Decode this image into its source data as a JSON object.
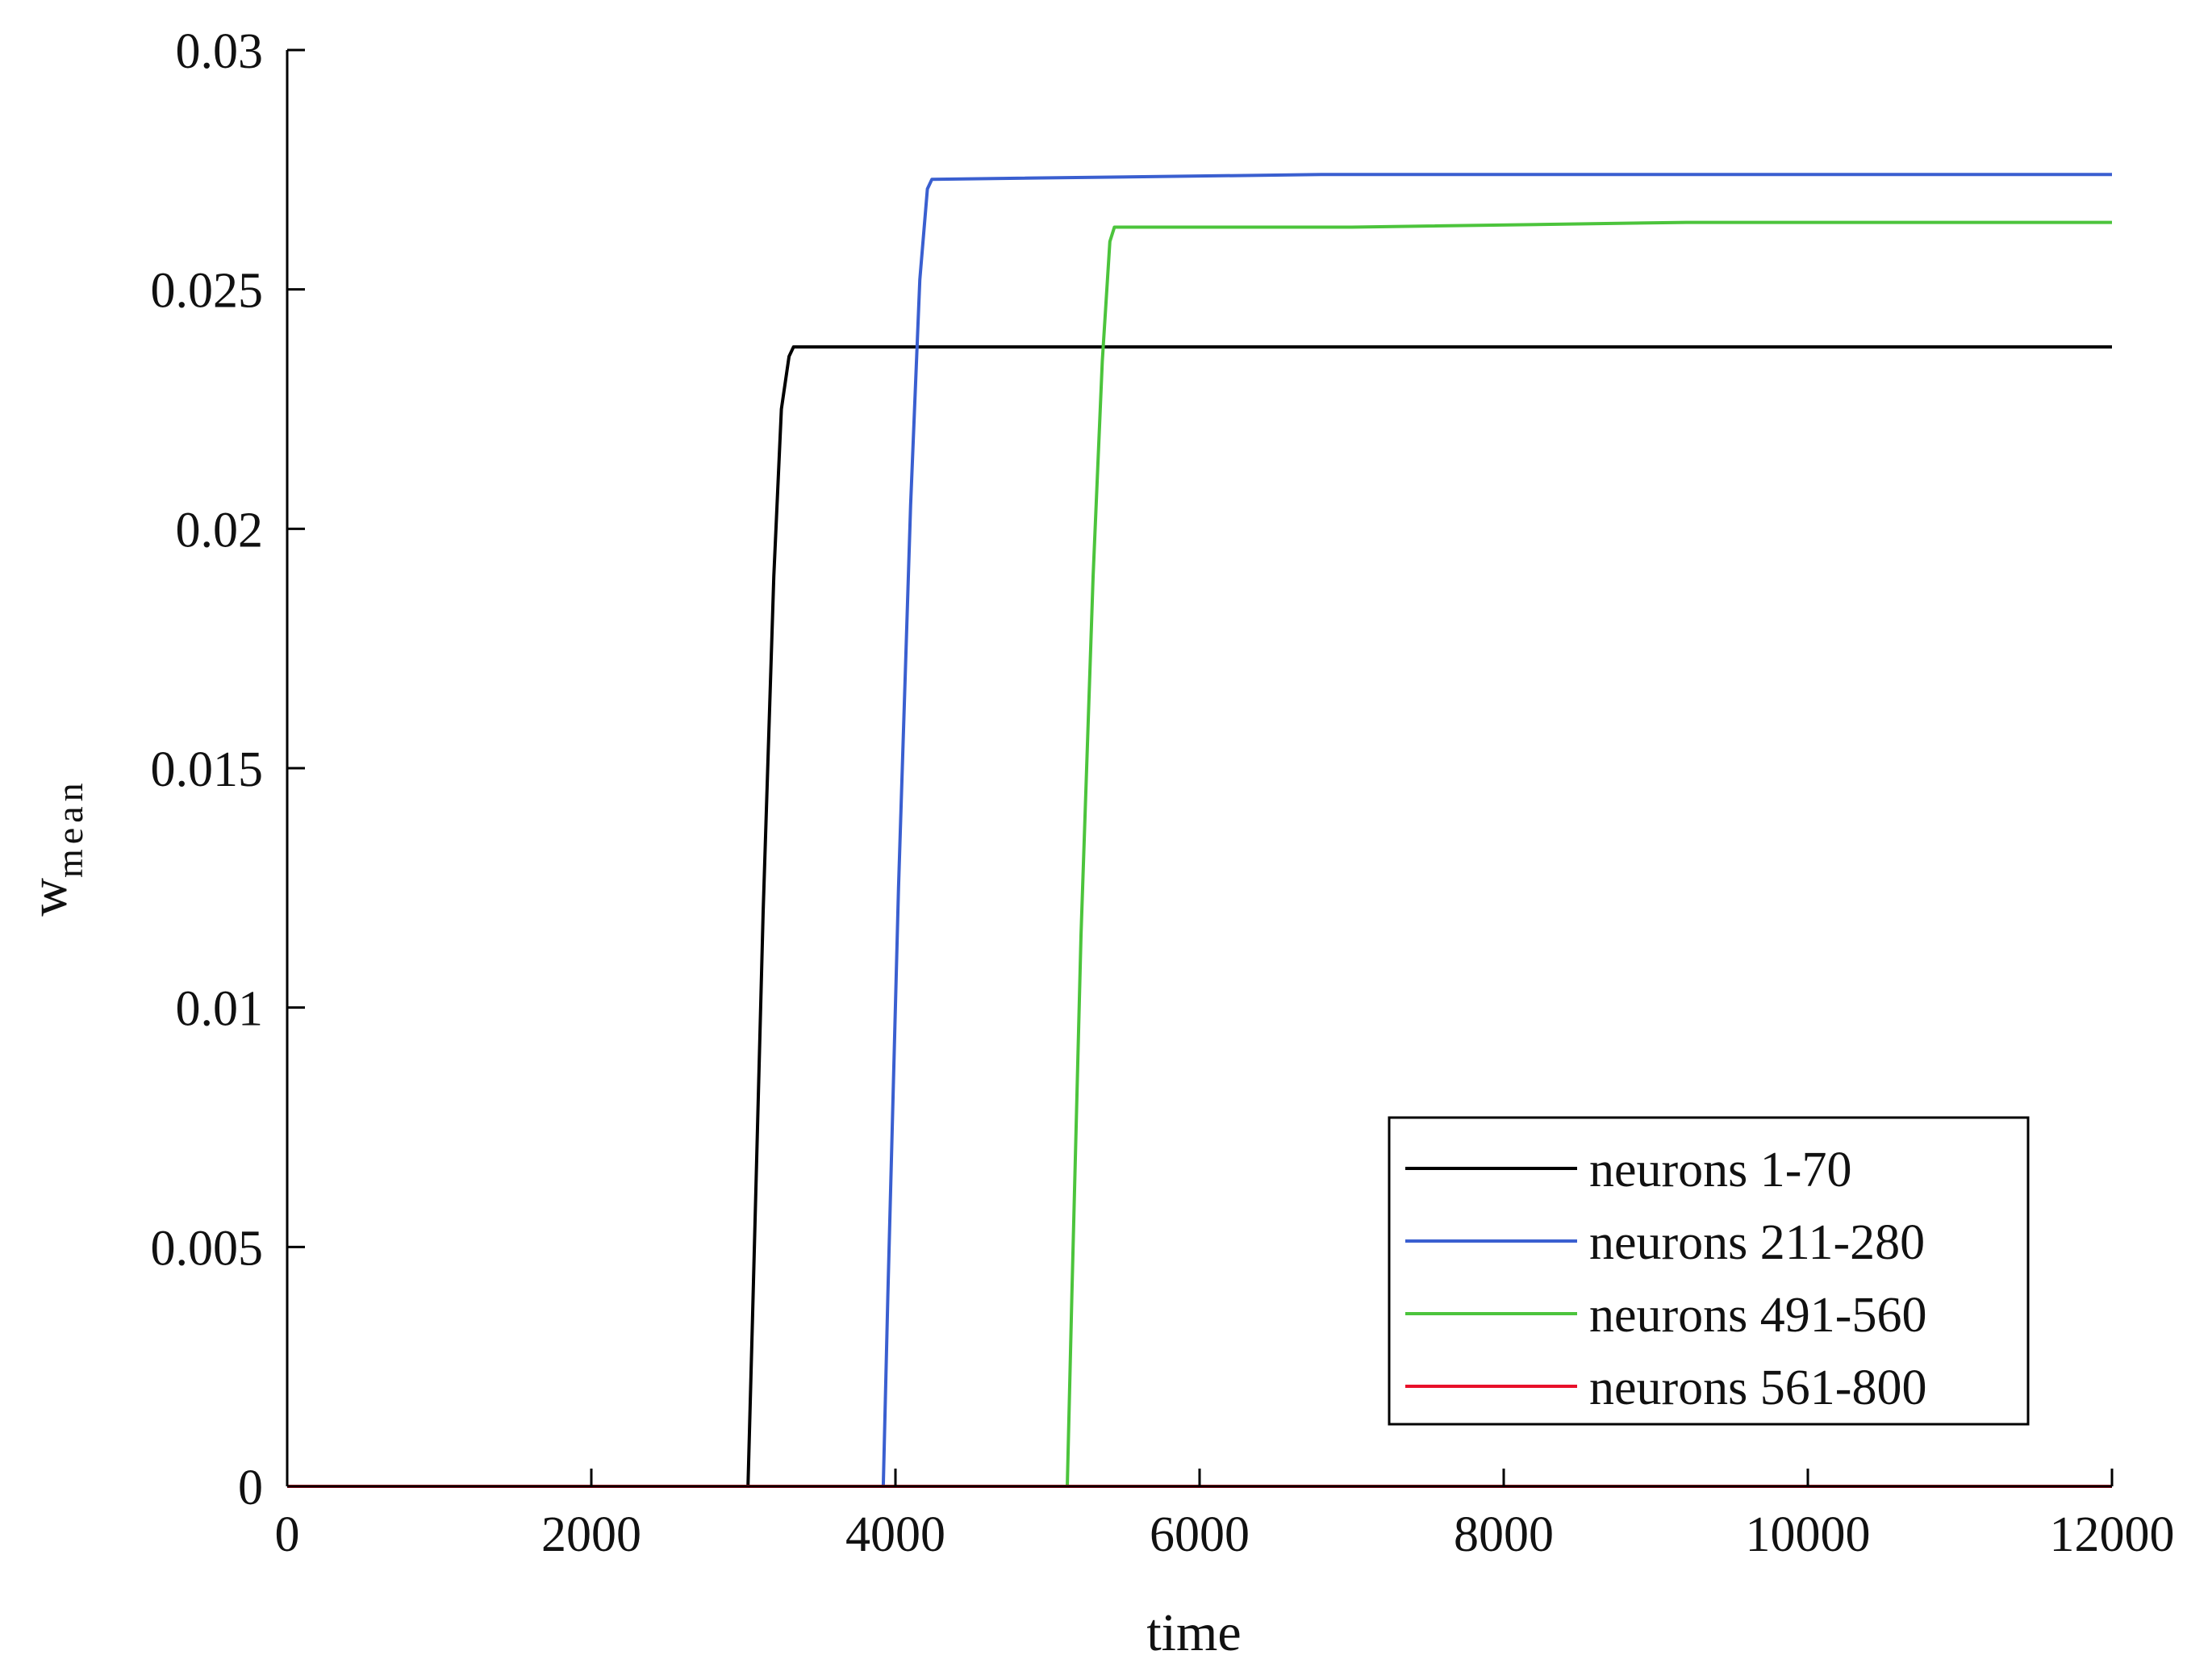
{
  "chart_data": {
    "type": "line",
    "xlabel": "time",
    "ylabel": "w",
    "ylabel_subscript": "mean",
    "xlim": [
      0,
      12000
    ],
    "ylim": [
      0,
      0.03
    ],
    "grid": false,
    "legend_position": "bottom-right",
    "x_ticks": [
      0,
      2000,
      4000,
      6000,
      8000,
      10000,
      12000
    ],
    "x_tick_labels": [
      "0",
      "2000",
      "4000",
      "6000",
      "8000",
      "10000",
      "12000"
    ],
    "y_ticks": [
      0,
      0.005,
      0.01,
      0.015,
      0.02,
      0.025,
      0.03
    ],
    "y_tick_labels": [
      "0",
      "0.005",
      "0.01",
      "0.015",
      "0.02",
      "0.025",
      "0.03"
    ],
    "series": [
      {
        "name": "neurons 1-70",
        "color": "#000000",
        "points": [
          [
            0,
            0
          ],
          [
            3030,
            0
          ],
          [
            3060,
            0.0035
          ],
          [
            3130,
            0.012
          ],
          [
            3200,
            0.019
          ],
          [
            3250,
            0.0225
          ],
          [
            3300,
            0.0236
          ],
          [
            3330,
            0.0238
          ],
          [
            12000,
            0.0238
          ]
        ]
      },
      {
        "name": "neurons 211-280",
        "color": "#3a5fd0",
        "points": [
          [
            0,
            0
          ],
          [
            3920,
            0
          ],
          [
            3950,
            0.004
          ],
          [
            4020,
            0.0125
          ],
          [
            4100,
            0.0205
          ],
          [
            4160,
            0.0252
          ],
          [
            4210,
            0.0271
          ],
          [
            4240,
            0.0273
          ],
          [
            6800,
            0.0274
          ],
          [
            12000,
            0.0274
          ]
        ]
      },
      {
        "name": "neurons 491-560",
        "color": "#4cc43c",
        "points": [
          [
            0,
            0
          ],
          [
            5130,
            0
          ],
          [
            5160,
            0.004
          ],
          [
            5220,
            0.0115
          ],
          [
            5300,
            0.019
          ],
          [
            5360,
            0.0235
          ],
          [
            5410,
            0.026
          ],
          [
            5440,
            0.0263
          ],
          [
            7000,
            0.0263
          ],
          [
            9200,
            0.0264
          ],
          [
            12000,
            0.0264
          ]
        ]
      },
      {
        "name": "neurons 561-800",
        "color": "#e8102a",
        "points": [
          [
            0,
            0
          ],
          [
            12000,
            0
          ]
        ]
      }
    ]
  }
}
